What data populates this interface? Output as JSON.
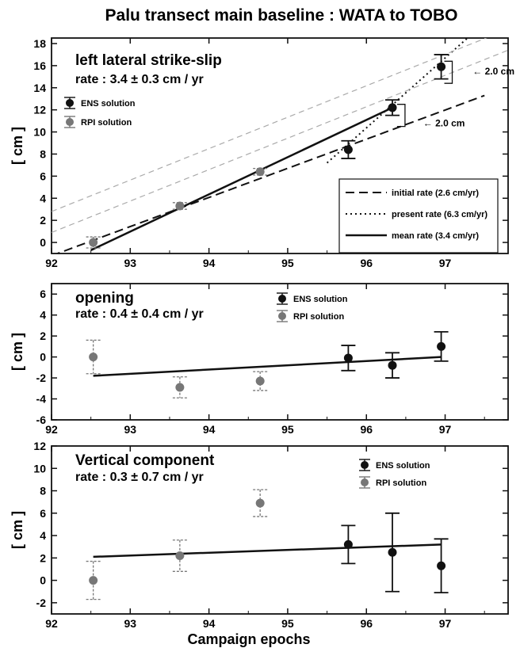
{
  "figure": {
    "title": "Palu transect main baseline : WATA to TOBO",
    "xlabel": "Campaign epochs"
  },
  "colors": {
    "ens": "#111111",
    "rpi": "#777777",
    "rpi_band": "#aaaaaa",
    "axis": "#111111",
    "background": "#ffffff"
  },
  "chart_data": [
    {
      "type": "scatter",
      "title": "left lateral strike-slip",
      "subtitle": "rate : 3.4  ± 0.3 cm / yr",
      "xlabel": "",
      "ylabel": "[ cm ]",
      "xlim": [
        92,
        97.8
      ],
      "ylim": [
        -1,
        18.5
      ],
      "xticks": [
        92,
        93,
        94,
        95,
        96,
        97
      ],
      "yticks": [
        0,
        2,
        4,
        6,
        8,
        10,
        12,
        14,
        16,
        18
      ],
      "legend_position": "top-left",
      "series": [
        {
          "name": "ENS solution",
          "style": "black",
          "points": [
            {
              "x": 95.77,
              "y": 8.4,
              "err": 0.8
            },
            {
              "x": 96.33,
              "y": 12.2,
              "err": 0.7
            },
            {
              "x": 96.95,
              "y": 15.9,
              "err": 1.1
            }
          ]
        },
        {
          "name": "RPI solution",
          "style": "gray",
          "points": [
            {
              "x": 92.53,
              "y": 0.0,
              "err": 0.5
            },
            {
              "x": 93.63,
              "y": 3.3,
              "err": 0.3
            },
            {
              "x": 94.65,
              "y": 6.4,
              "err": 0.3
            }
          ]
        }
      ],
      "lines": [
        {
          "name": "initial rate (2.6 cm/yr)",
          "style": "dashed",
          "x": [
            92,
            97.5
          ],
          "y": [
            -1.2,
            13.3
          ]
        },
        {
          "name": "present rate (6.3 cm/yr)",
          "style": "dotted",
          "x": [
            95.5,
            97.3
          ],
          "y": [
            7.2,
            18.6
          ]
        },
        {
          "name": "mean rate (3.4 cm/yr)",
          "style": "solid",
          "x": [
            92.5,
            96.33
          ],
          "y": [
            -0.7,
            12.2
          ]
        },
        {
          "name": "",
          "style": "band",
          "x": [
            92,
            97.8
          ],
          "y": [
            0.9,
            17.4
          ]
        },
        {
          "name": "",
          "style": "band",
          "x": [
            92,
            97.8
          ],
          "y": [
            2.8,
            19.3
          ]
        }
      ],
      "annotations": [
        {
          "text": "2.0 cm",
          "x": 97.35,
          "y": 15.5,
          "bracket_x": 97.05,
          "bracket_y": [
            14.4,
            16.4
          ]
        },
        {
          "text": "2.0 cm",
          "x": 96.72,
          "y": 10.8,
          "bracket_x": 96.45,
          "bracket_y": [
            10.5,
            12.5
          ]
        }
      ]
    },
    {
      "type": "scatter",
      "title": "opening",
      "subtitle": "rate : 0.4  ± 0.4 cm / yr",
      "xlabel": "",
      "ylabel": "[ cm ]",
      "xlim": [
        92,
        97.8
      ],
      "ylim": [
        -6,
        7
      ],
      "xticks": [
        92,
        93,
        94,
        95,
        96,
        97
      ],
      "yticks": [
        -6,
        -4,
        -2,
        0,
        2,
        4,
        6
      ],
      "legend_position": "top-center",
      "series": [
        {
          "name": "ENS solution",
          "style": "black",
          "points": [
            {
              "x": 95.77,
              "y": -0.1,
              "err": 1.2
            },
            {
              "x": 96.33,
              "y": -0.8,
              "err": 1.2
            },
            {
              "x": 96.95,
              "y": 1.0,
              "err": 1.4
            }
          ]
        },
        {
          "name": "RPI solution",
          "style": "gray",
          "points": [
            {
              "x": 92.53,
              "y": 0.0,
              "err": 1.6
            },
            {
              "x": 93.63,
              "y": -2.9,
              "err": 1.0
            },
            {
              "x": 94.65,
              "y": -2.3,
              "err": 0.9
            }
          ]
        }
      ],
      "lines": [
        {
          "name": "",
          "style": "solid",
          "x": [
            92.53,
            96.95
          ],
          "y": [
            -1.8,
            0.0
          ]
        }
      ],
      "annotations": []
    },
    {
      "type": "scatter",
      "title": "Vertical component",
      "subtitle": "rate : 0.3  ± 0.7 cm / yr",
      "xlabel": "",
      "ylabel": "[ cm ]",
      "xlim": [
        92,
        97.8
      ],
      "ylim": [
        -3,
        12
      ],
      "xticks": [
        92,
        93,
        94,
        95,
        96,
        97
      ],
      "yticks": [
        -2,
        0,
        2,
        4,
        6,
        8,
        10,
        12
      ],
      "legend_position": "top-right",
      "series": [
        {
          "name": "ENS solution",
          "style": "black",
          "points": [
            {
              "x": 95.77,
              "y": 3.2,
              "err": 1.7
            },
            {
              "x": 96.33,
              "y": 2.5,
              "err": 3.5
            },
            {
              "x": 96.95,
              "y": 1.3,
              "err": 2.4
            }
          ]
        },
        {
          "name": "RPI solution",
          "style": "gray",
          "points": [
            {
              "x": 92.53,
              "y": 0.0,
              "err": 1.7
            },
            {
              "x": 93.63,
              "y": 2.2,
              "err": 1.4
            },
            {
              "x": 94.65,
              "y": 6.9,
              "err": 1.2
            }
          ]
        }
      ],
      "lines": [
        {
          "name": "",
          "style": "solid",
          "x": [
            92.53,
            96.95
          ],
          "y": [
            2.1,
            3.2
          ]
        }
      ],
      "annotations": []
    }
  ]
}
